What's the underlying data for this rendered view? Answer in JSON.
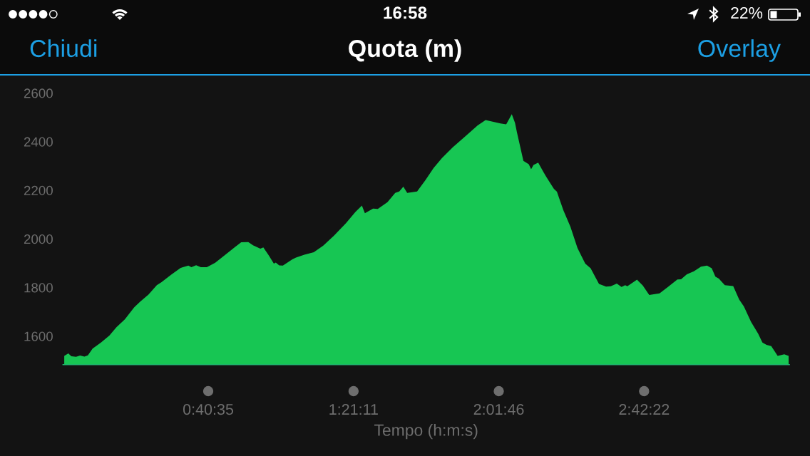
{
  "chart_data": {
    "type": "area",
    "title": "Quota (m)",
    "xlabel": "Tempo (h:m:s)",
    "annotations": [
      "16:58",
      "22%",
      "Chiudi",
      "Overlay"
    ],
    "x": [
      0.006,
      0.025,
      0.039,
      0.061,
      0.08,
      0.1,
      0.116,
      0.138,
      0.177,
      0.216,
      0.249,
      0.288,
      0.332,
      0.36,
      0.398,
      0.437,
      0.459,
      0.504,
      0.548,
      0.584,
      0.598,
      0.62,
      0.642,
      0.67,
      0.709,
      0.753,
      0.802,
      0.83,
      0.863,
      0.885,
      0.919,
      0.933,
      0.958,
      0.982,
      0.991,
      1.007,
      1.024,
      1.068,
      1.085,
      1.124,
      1.168,
      1.212,
      1.262,
      1.317,
      1.361,
      1.392,
      1.406,
      1.444,
      1.466,
      1.511,
      1.547,
      1.566,
      1.585,
      1.603,
      1.649,
      1.688,
      1.726,
      1.765,
      1.815,
      1.871,
      1.931,
      1.968,
      2.037,
      2.064,
      2.09,
      2.105,
      2.114,
      2.144,
      2.169,
      2.18,
      2.191,
      2.213,
      2.247,
      2.286,
      2.3,
      2.33,
      2.363,
      2.396,
      2.432,
      2.457,
      2.496,
      2.529,
      2.551,
      2.579,
      2.601,
      2.618,
      2.628,
      2.673,
      2.7,
      2.73,
      2.778,
      2.817,
      2.861,
      2.878,
      2.905,
      2.938,
      2.971,
      2.999,
      3.021,
      3.038,
      3.054,
      3.082,
      3.121,
      3.149,
      3.171,
      3.204,
      3.237,
      3.257,
      3.276,
      3.298,
      3.328,
      3.359,
      3.379
    ],
    "values": [
      1519,
      1529,
      1517,
      1515,
      1520,
      1516,
      1521,
      1549,
      1574,
      1602,
      1637,
      1669,
      1719,
      1742,
      1771,
      1810,
      1822,
      1853,
      1881,
      1890,
      1884,
      1892,
      1884,
      1884,
      1902,
      1933,
      1967,
      1986,
      1987,
      1974,
      1960,
      1965,
      1933,
      1898,
      1903,
      1891,
      1890,
      1916,
      1923,
      1935,
      1945,
      1972,
      2013,
      2064,
      2110,
      2137,
      2106,
      2125,
      2123,
      2151,
      2189,
      2195,
      2215,
      2189,
      2195,
      2242,
      2292,
      2333,
      2377,
      2420,
      2467,
      2489,
      2475,
      2471,
      2513,
      2477,
      2438,
      2321,
      2307,
      2287,
      2304,
      2314,
      2260,
      2206,
      2194,
      2118,
      2050,
      1962,
      1898,
      1879,
      1815,
      1804,
      1805,
      1816,
      1802,
      1810,
      1805,
      1832,
      1808,
      1769,
      1776,
      1802,
      1833,
      1834,
      1854,
      1867,
      1886,
      1890,
      1879,
      1845,
      1837,
      1810,
      1806,
      1750,
      1722,
      1659,
      1610,
      1574,
      1564,
      1559,
      1519,
      1525,
      1519
    ],
    "color": "#17c653",
    "xlim": [
      0,
      3.3826
    ],
    "ylim": [
      1483,
      2675
    ],
    "xticks": [
      {
        "value": 0.6764,
        "label": "0:40:35"
      },
      {
        "value": 1.3531,
        "label": "1:21:11"
      },
      {
        "value": 2.0294,
        "label": "2:01:46"
      },
      {
        "value": 2.7061,
        "label": "2:42:22"
      }
    ],
    "yticks": [
      1600,
      1800,
      2000,
      2200,
      2400,
      2600
    ]
  }
}
